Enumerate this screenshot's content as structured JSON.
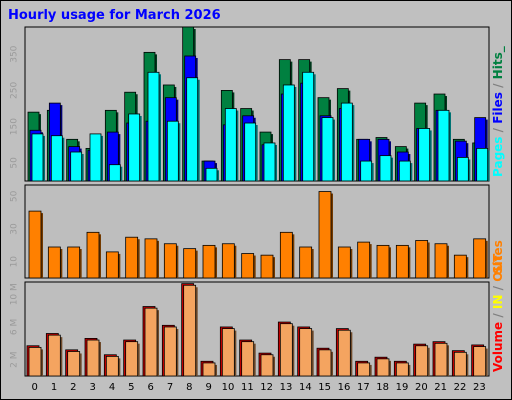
{
  "title": "Hourly usage for March 2026",
  "colors": {
    "background": "#c0c0c0",
    "panel": "#bebebe",
    "hits": "#008040",
    "files": "#0000ff",
    "pages": "#00ffff",
    "sites": "#ff8000",
    "volume": "#ff0000",
    "title": "#0000ff"
  },
  "chart_data": {
    "type": "bar",
    "categories": [
      "0",
      "1",
      "2",
      "3",
      "4",
      "5",
      "6",
      "7",
      "8",
      "9",
      "10",
      "11",
      "12",
      "13",
      "14",
      "15",
      "16",
      "17",
      "18",
      "19",
      "20",
      "21",
      "22",
      "23"
    ],
    "panels": [
      {
        "id": "hits-files-pages",
        "legend": [
          {
            "text": "Pages",
            "color": "#00ffff"
          },
          {
            "text": " / ",
            "color": "#808080"
          },
          {
            "text": "Files",
            "color": "#0000ff"
          },
          {
            "text": " / ",
            "color": "#808080"
          },
          {
            "text": "Hits",
            "color": "#008040"
          },
          {
            "text": "_",
            "color": "#008040"
          }
        ],
        "yticks": [
          "50",
          "150",
          "250",
          "350"
        ],
        "ytick_values": [
          50,
          150,
          250,
          350
        ],
        "ylim": [
          0,
          425
        ],
        "series": [
          {
            "name": "Hits",
            "values": [
              190,
              195,
              115,
              90,
              195,
              245,
              355,
              265,
              425,
              55,
              250,
              200,
              135,
              335,
              335,
              230,
              255,
              115,
              120,
              95,
              215,
              240,
              115,
              105
            ]
          },
          {
            "name": "Files",
            "values": [
              140,
              215,
              95,
              85,
              135,
              160,
              165,
              230,
              345,
              55,
              155,
              180,
              100,
              240,
              270,
              180,
              200,
              115,
              115,
              80,
              145,
              195,
              110,
              175
            ]
          },
          {
            "name": "Pages",
            "values": [
              130,
              125,
              80,
              130,
              45,
              185,
              300,
              165,
              285,
              35,
              200,
              160,
              105,
              265,
              300,
              175,
              215,
              55,
              70,
              55,
              145,
              195,
              65,
              90
            ]
          }
        ]
      },
      {
        "id": "sites",
        "legend": [
          {
            "text": "Sites",
            "color": "#ff8000"
          }
        ],
        "yticks": [
          "10",
          "30",
          "50"
        ],
        "ytick_values": [
          10,
          30,
          50
        ],
        "ylim": [
          0,
          57
        ],
        "series": [
          {
            "name": "Sites",
            "values": [
              41,
              19,
              19,
              28,
              16,
              25,
              24,
              21,
              18,
              20,
              21,
              15,
              14,
              28,
              19,
              53,
              19,
              22,
              20,
              20,
              23,
              21,
              14,
              24
            ]
          }
        ]
      },
      {
        "id": "volume",
        "legend": [
          {
            "text": "Volume",
            "color": "#ff0000"
          },
          {
            "text": " / ",
            "color": "#808080"
          },
          {
            "text": "IN",
            "color": "#ffff00"
          },
          {
            "text": " / ",
            "color": "#808080"
          },
          {
            "text": "OUT",
            "color": "#ff8000"
          }
        ],
        "yticks": [
          "2 M",
          "6 M",
          "10 M"
        ],
        "ytick_values": [
          2,
          6,
          10
        ],
        "ylim": [
          0,
          11.5
        ],
        "series": [
          {
            "name": "Volume",
            "values": [
              3.7,
              5.2,
              3.2,
              4.6,
              2.6,
              4.4,
              8.5,
              6.2,
              11.3,
              1.8,
              6.0,
              4.4,
              2.8,
              6.6,
              6.0,
              3.4,
              5.8,
              1.8,
              2.3,
              1.8,
              3.9,
              4.2,
              3.1,
              3.8
            ]
          },
          {
            "name": "OUT",
            "values": [
              3.5,
              5.0,
              3.0,
              4.4,
              2.4,
              4.2,
              8.3,
              6.0,
              11.1,
              1.6,
              5.8,
              4.2,
              2.6,
              6.4,
              5.8,
              3.2,
              5.6,
              1.6,
              2.1,
              1.6,
              3.7,
              4.0,
              2.9,
              3.6
            ]
          }
        ]
      }
    ]
  }
}
